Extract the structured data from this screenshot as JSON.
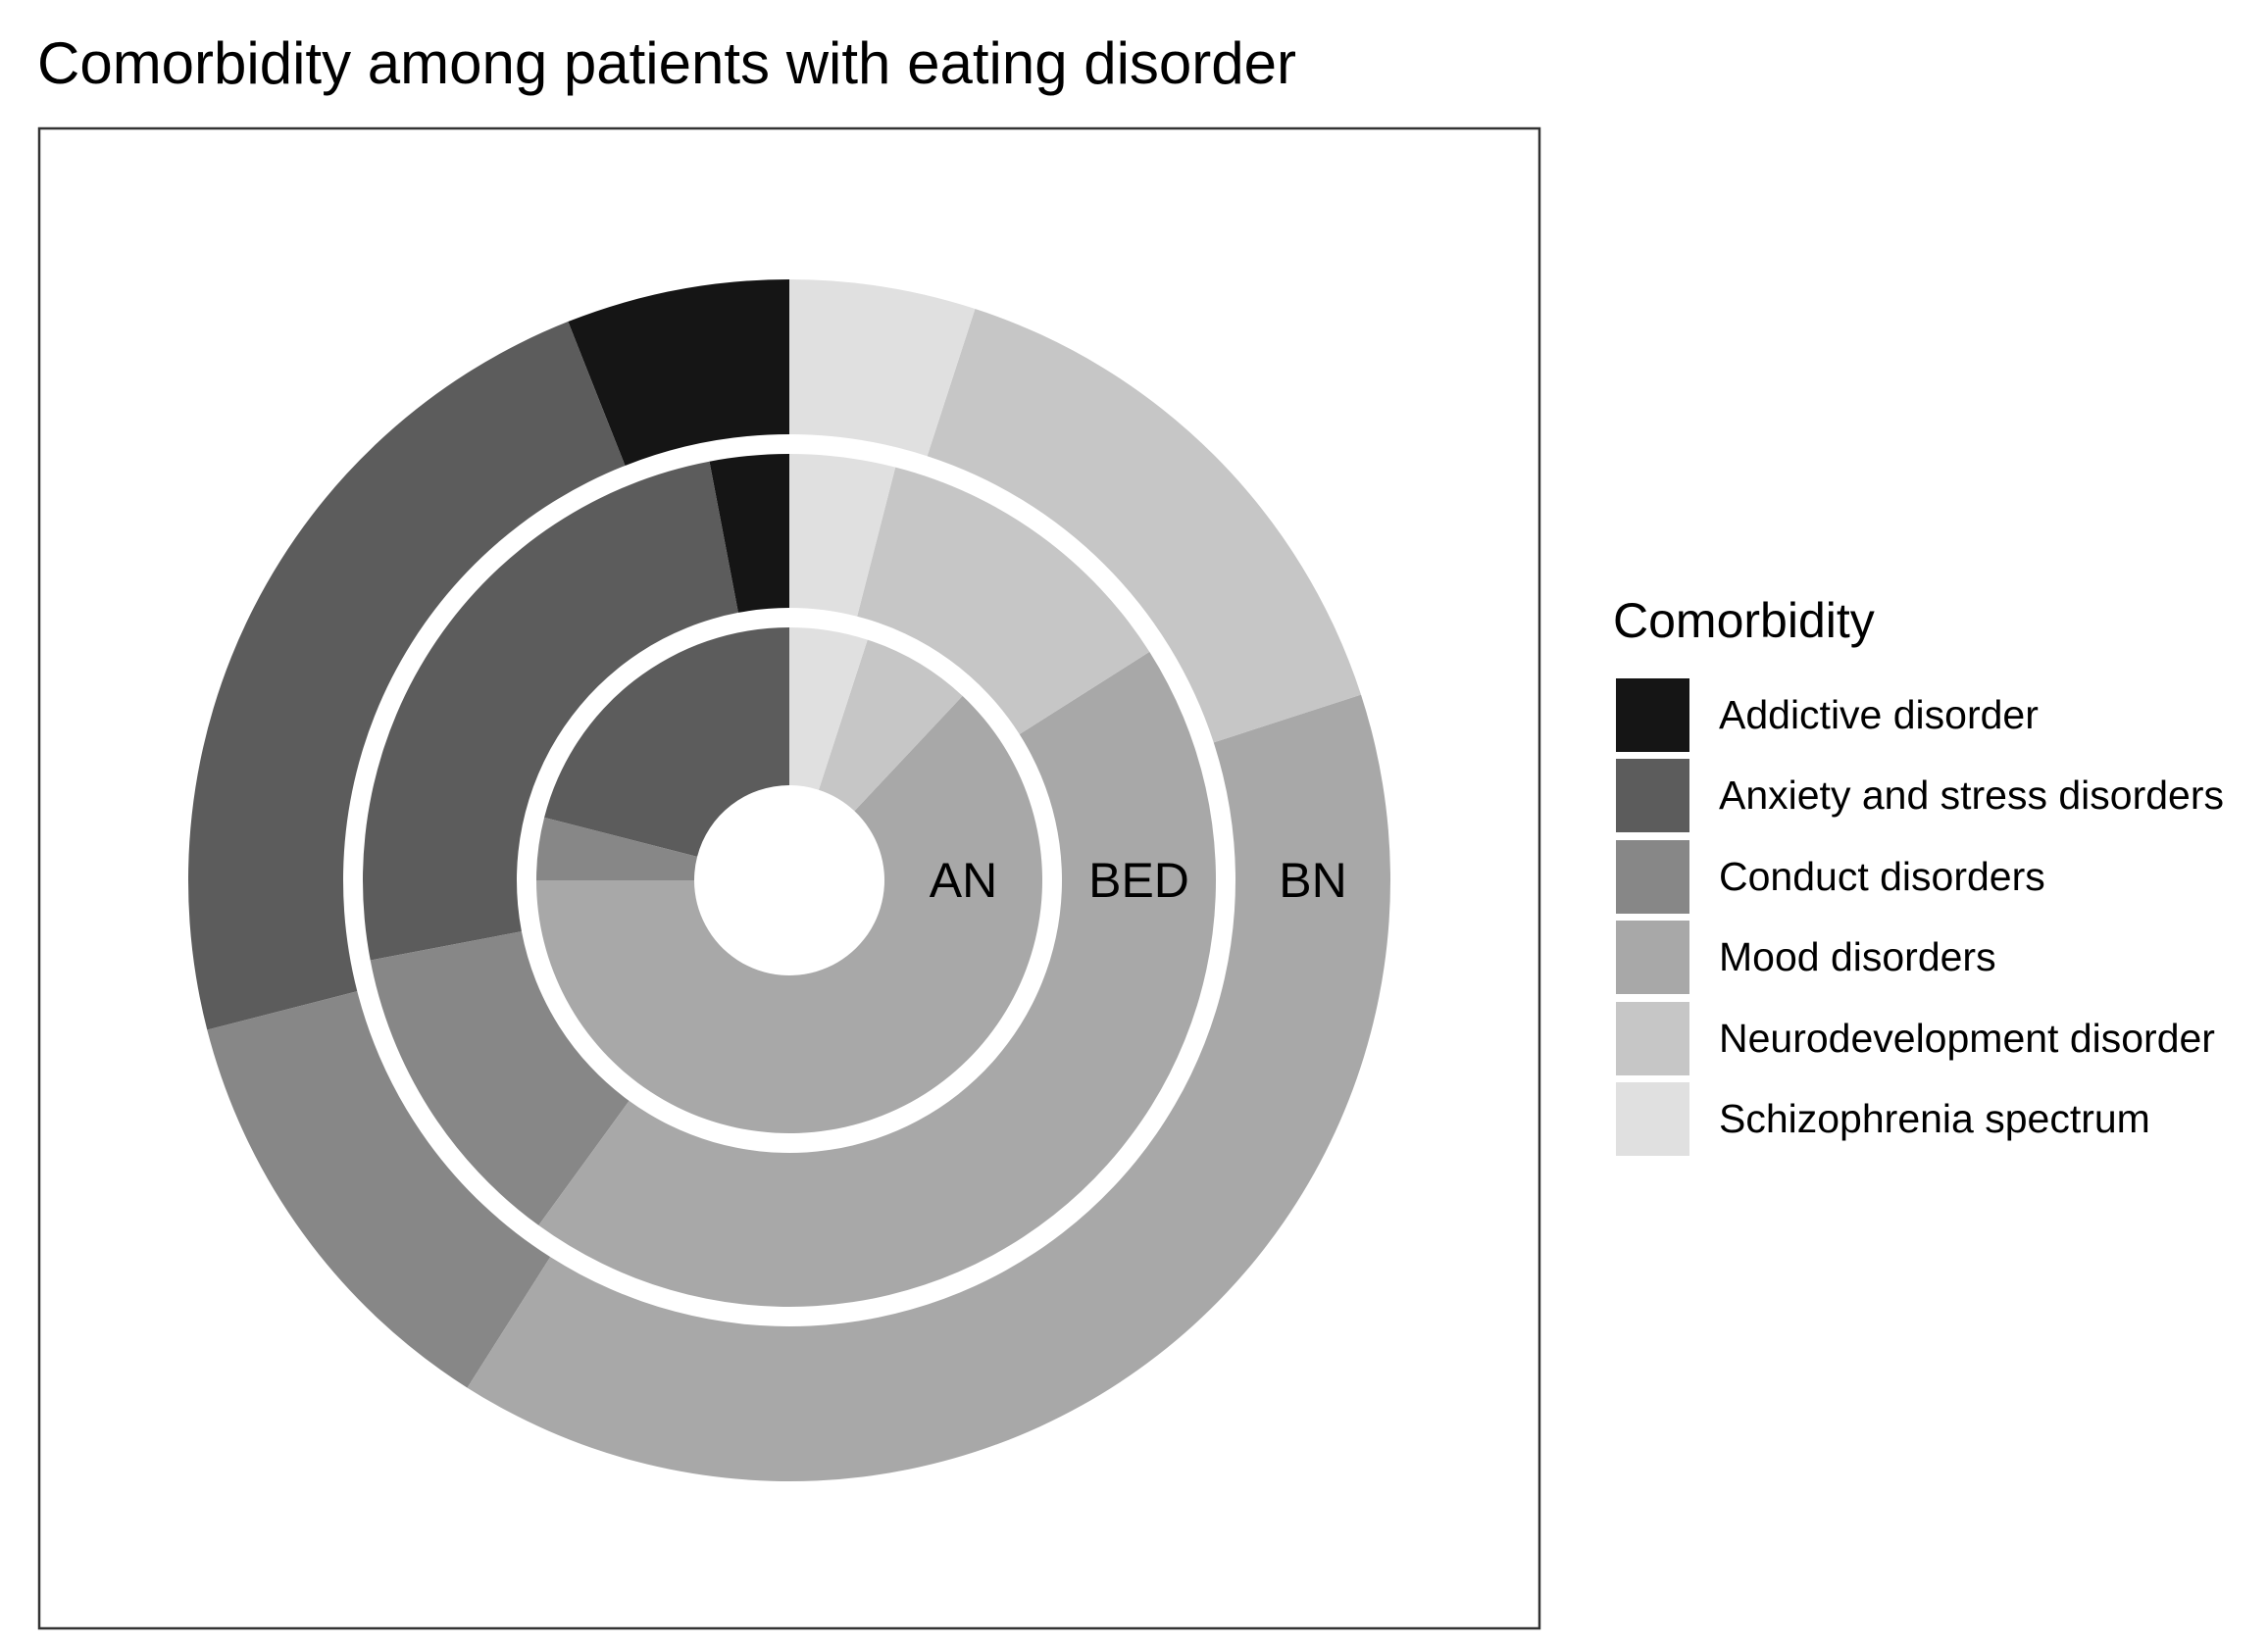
{
  "chart_data": {
    "type": "pie",
    "title": "Comorbidity among patients with eating disorder",
    "legend": {
      "title": "Comorbidity",
      "position": "right",
      "entries": [
        {
          "label": "Addictive disorder",
          "color": "#151515"
        },
        {
          "label": "Anxiety and stress disorders",
          "color": "#5c5c5c"
        },
        {
          "label": "Conduct disorders",
          "color": "#878787"
        },
        {
          "label": "Mood disorders",
          "color": "#a8a8a8"
        },
        {
          "label": "Neurodevelopment disorder",
          "color": "#c6c6c6"
        },
        {
          "label": "Schizophrenia spectrum",
          "color": "#e0e0e0"
        }
      ]
    },
    "categories": [
      "Addictive disorder",
      "Anxiety and stress disorders",
      "Conduct disorders",
      "Mood disorders",
      "Neurodevelopment disorder",
      "Schizophrenia spectrum"
    ],
    "rings": [
      {
        "name": "AN",
        "values": [
          0,
          21,
          4,
          63,
          7,
          5
        ]
      },
      {
        "name": "BED",
        "values": [
          3,
          25,
          12,
          44,
          12,
          4
        ]
      },
      {
        "name": "BN",
        "values": [
          6,
          23,
          12,
          39,
          15,
          5
        ]
      }
    ]
  }
}
